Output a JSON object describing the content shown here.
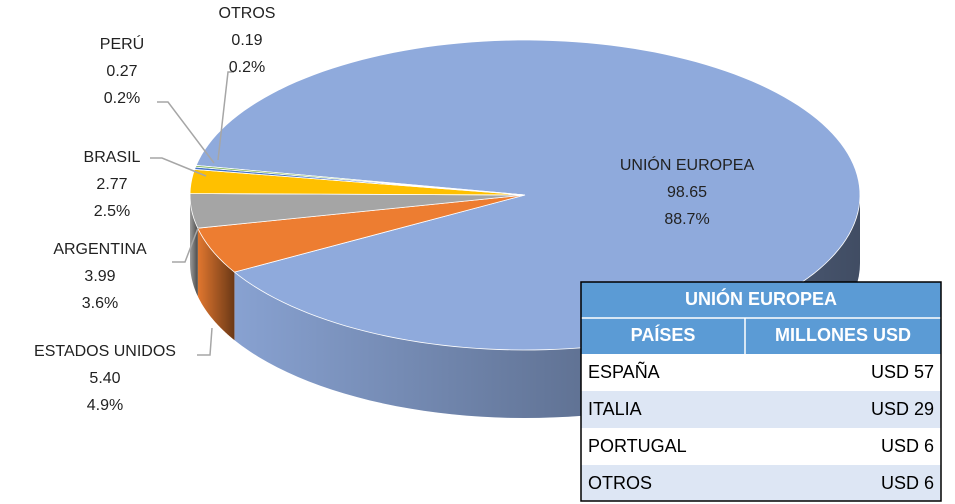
{
  "chart_data": {
    "type": "pie3d",
    "categories": [
      "UNIÓN EUROPEA",
      "ESTADOS UNIDOS",
      "ARGENTINA",
      "BRASIL",
      "PERÚ",
      "OTROS"
    ],
    "values": [
      98.65,
      5.4,
      3.99,
      2.77,
      0.27,
      0.19
    ],
    "value_labels": [
      "98.65",
      "5.40",
      "3.99",
      "2.77",
      "0.27",
      "0.19"
    ],
    "percent_labels": [
      "88.7%",
      "4.9%",
      "3.6%",
      "2.5%",
      "0.2%",
      "0.2%"
    ],
    "colors": [
      "#8faadc",
      "#ed7d31",
      "#a5a5a5",
      "#ffc000",
      "#4472c4",
      "#70ad47"
    ]
  },
  "table": {
    "title": "UNIÓN EUROPEA",
    "headers": [
      "PAÍSES",
      "MILLONES USD"
    ],
    "rows": [
      [
        "ESPAÑA",
        "USD 57"
      ],
      [
        "ITALIA",
        "USD 29"
      ],
      [
        "PORTUGAL",
        "USD 6"
      ],
      [
        "OTROS",
        "USD 6"
      ]
    ]
  }
}
